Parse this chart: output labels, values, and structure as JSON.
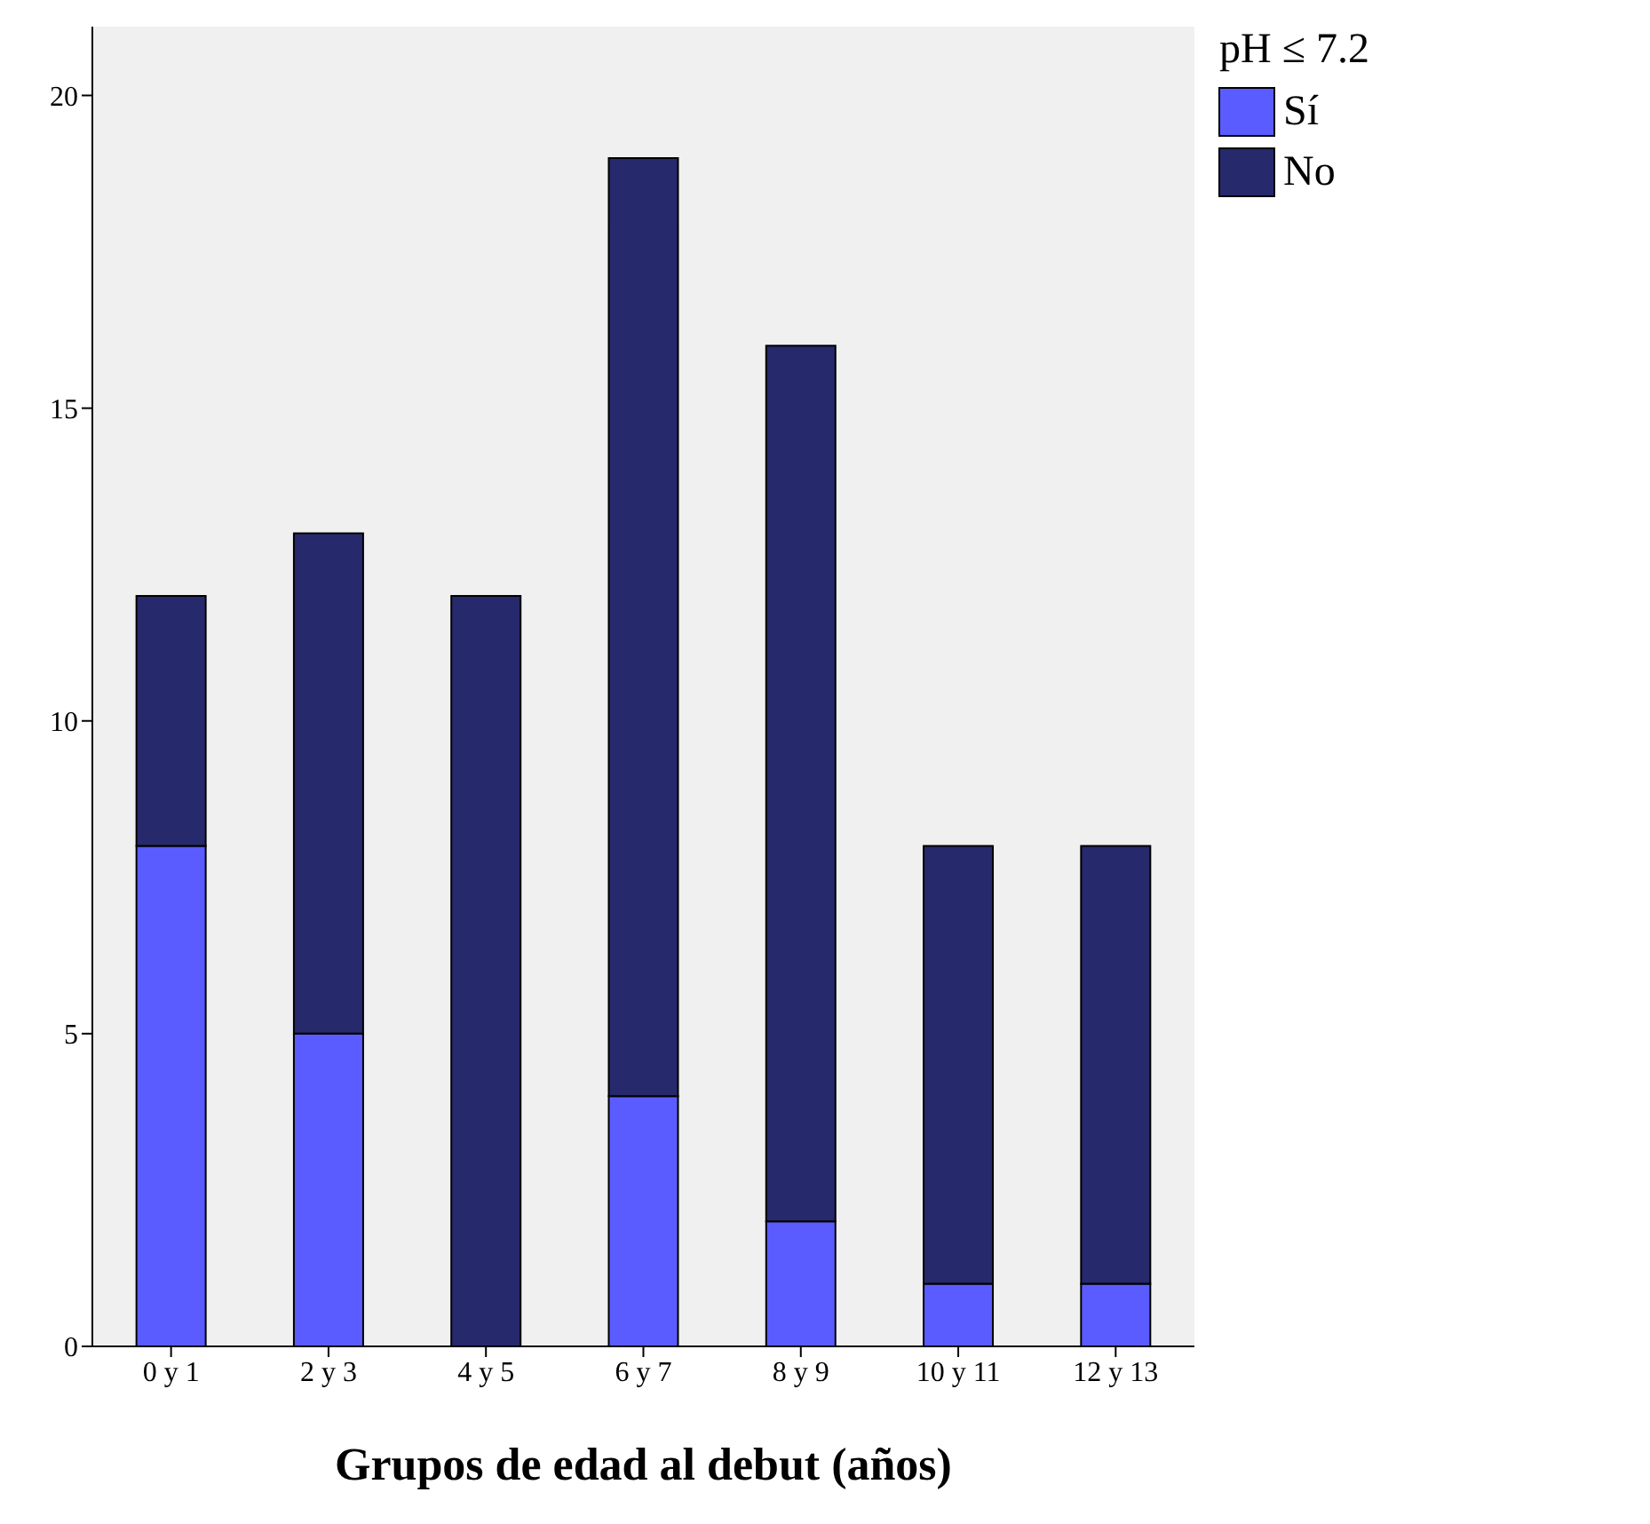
{
  "chart_data": {
    "type": "bar",
    "stacked": true,
    "xlabel": "Grupos de edad al debut (años)",
    "legend_title": "pH ≤ 7.2",
    "legend": "top right",
    "categories": [
      "0 y 1",
      "2 y 3",
      "4 y 5",
      "6 y 7",
      "8 y 9",
      "10 y 11",
      "12 y 13"
    ],
    "series": [
      {
        "name": "Sí",
        "color": "#5b5cff",
        "values": [
          8,
          5,
          0,
          4,
          2,
          1,
          1
        ]
      },
      {
        "name": "No",
        "color": "#26296b",
        "values": [
          4,
          8,
          12,
          15,
          14,
          7,
          7
        ]
      }
    ],
    "ylim": [
      0,
      21.1
    ],
    "yticks": [
      0,
      5,
      10,
      15,
      20
    ]
  }
}
